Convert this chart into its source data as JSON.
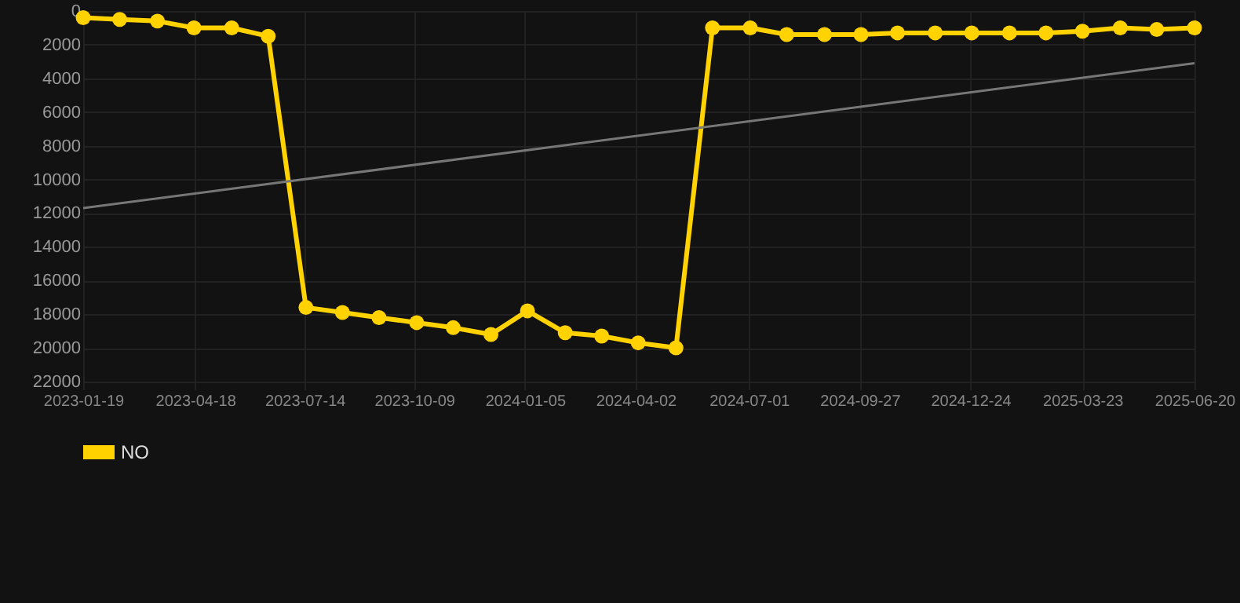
{
  "chart_data": {
    "type": "line",
    "x": [
      "2023-01-19",
      "2023-02-17",
      "2023-03-19",
      "2023-04-17",
      "2023-05-17",
      "2023-06-15",
      "2023-07-15",
      "2023-08-13",
      "2023-09-11",
      "2023-10-11",
      "2023-11-09",
      "2023-12-09",
      "2024-01-07",
      "2024-02-06",
      "2024-03-06",
      "2024-04-04",
      "2024-05-04",
      "2024-06-02",
      "2024-07-02",
      "2024-07-31",
      "2024-08-30",
      "2024-09-28",
      "2024-10-27",
      "2024-11-26",
      "2024-12-25",
      "2025-01-24",
      "2025-02-22",
      "2025-03-23",
      "2025-04-22",
      "2025-05-21",
      "2025-06-20"
    ],
    "series": [
      {
        "name": "NO",
        "color": "#ffd200",
        "values": [
          400,
          500,
          600,
          1000,
          1000,
          1500,
          17600,
          17900,
          18200,
          18500,
          18800,
          19200,
          17800,
          19100,
          19300,
          19700,
          20000,
          1000,
          1000,
          1400,
          1400,
          1400,
          1300,
          1300,
          1300,
          1300,
          1300,
          1200,
          1000,
          1100,
          1000
        ]
      },
      {
        "type": "line",
        "color": "#777777",
        "marker": "none",
        "x": [
          "2023-01-19",
          "2025-06-20"
        ],
        "values": [
          11700,
          3100
        ]
      }
    ],
    "ylim": [
      22000,
      0
    ],
    "yticks": [
      0,
      2000,
      4000,
      6000,
      8000,
      10000,
      12000,
      14000,
      16000,
      18000,
      20000,
      22000
    ],
    "xlim": [
      "2023-01-19",
      "2025-06-20"
    ],
    "xticks": [
      "2023-01-19",
      "2023-04-18",
      "2023-07-14",
      "2023-10-09",
      "2024-01-05",
      "2024-04-02",
      "2024-07-01",
      "2024-09-27",
      "2024-12-24",
      "2025-03-23",
      "2025-06-20"
    ],
    "grid": true,
    "legend": "bottom",
    "marker": "circle",
    "line_style": "solid"
  }
}
